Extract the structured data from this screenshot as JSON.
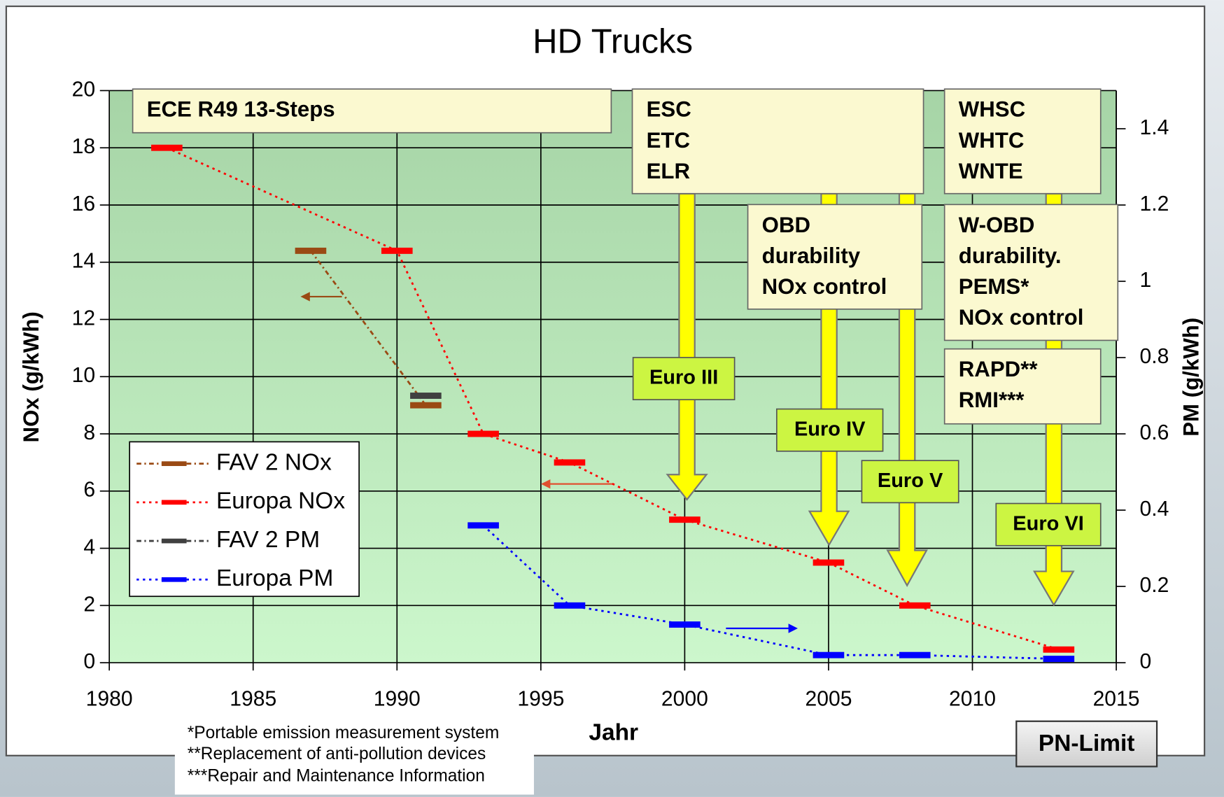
{
  "chart_data": {
    "type": "line",
    "title": "HD Trucks",
    "x_label": "Jahr",
    "y_label": "NOx (g/kWh)",
    "y2_label": "PM (g/kWh)",
    "xlim": [
      1980,
      2015
    ],
    "xticks": [
      1980,
      1985,
      1990,
      1995,
      2000,
      2005,
      2010,
      2015
    ],
    "ylim": [
      0,
      20
    ],
    "yticks": [
      0,
      2,
      4,
      6,
      8,
      10,
      12,
      14,
      16,
      18,
      20
    ],
    "y2lim": [
      0,
      1.5
    ],
    "y2ticks": [
      0,
      0.2,
      0.4,
      0.6,
      0.8,
      1,
      1.2,
      1.4
    ],
    "grid": true,
    "series": [
      {
        "name": "FAV 2 NOx",
        "color": "#9a4a14",
        "x": [
          1987,
          1991
        ],
        "values": [
          14.4,
          9
        ]
      },
      {
        "name": "Europa NOx",
        "color": "#ff0000",
        "x": [
          1982,
          1990,
          1993,
          1996,
          2000,
          2005,
          2008,
          2013
        ],
        "values": [
          18,
          14.4,
          8,
          7,
          5,
          3.5,
          2,
          0.46
        ]
      },
      {
        "name": "FAV 2 PM",
        "color": "#404040",
        "axis": "y2",
        "x": [
          1991
        ],
        "values": [
          0.7
        ]
      },
      {
        "name": "Europa PM",
        "color": "#0000ff",
        "axis": "y2",
        "x": [
          1993,
          1996,
          2000,
          2005,
          2008,
          2013
        ],
        "values": [
          0.36,
          0.15,
          0.1,
          0.02,
          0.02,
          0.01
        ]
      }
    ],
    "annotations": [
      {
        "lines": [
          "ECE R49 13-Steps"
        ]
      },
      {
        "lines": [
          "ESC",
          "ETC",
          "ELR"
        ]
      },
      {
        "lines": [
          "OBD",
          "durability",
          "NOx control"
        ]
      },
      {
        "lines": [
          "WHSC",
          "WHTC",
          "WNTE"
        ]
      },
      {
        "lines": [
          "W-OBD",
          "durability.",
          "PEMS*",
          "NOx control"
        ]
      },
      {
        "lines": [
          "RAPD**",
          "RMI***"
        ]
      }
    ],
    "stages": [
      "Euro III",
      "Euro IV",
      "Euro V",
      "Euro VI"
    ],
    "footnotes": [
      "*Portable emission measurement system",
      "**Replacement of anti-pollution devices",
      "***Repair and Maintenance Information"
    ],
    "button": "PN-Limit"
  }
}
